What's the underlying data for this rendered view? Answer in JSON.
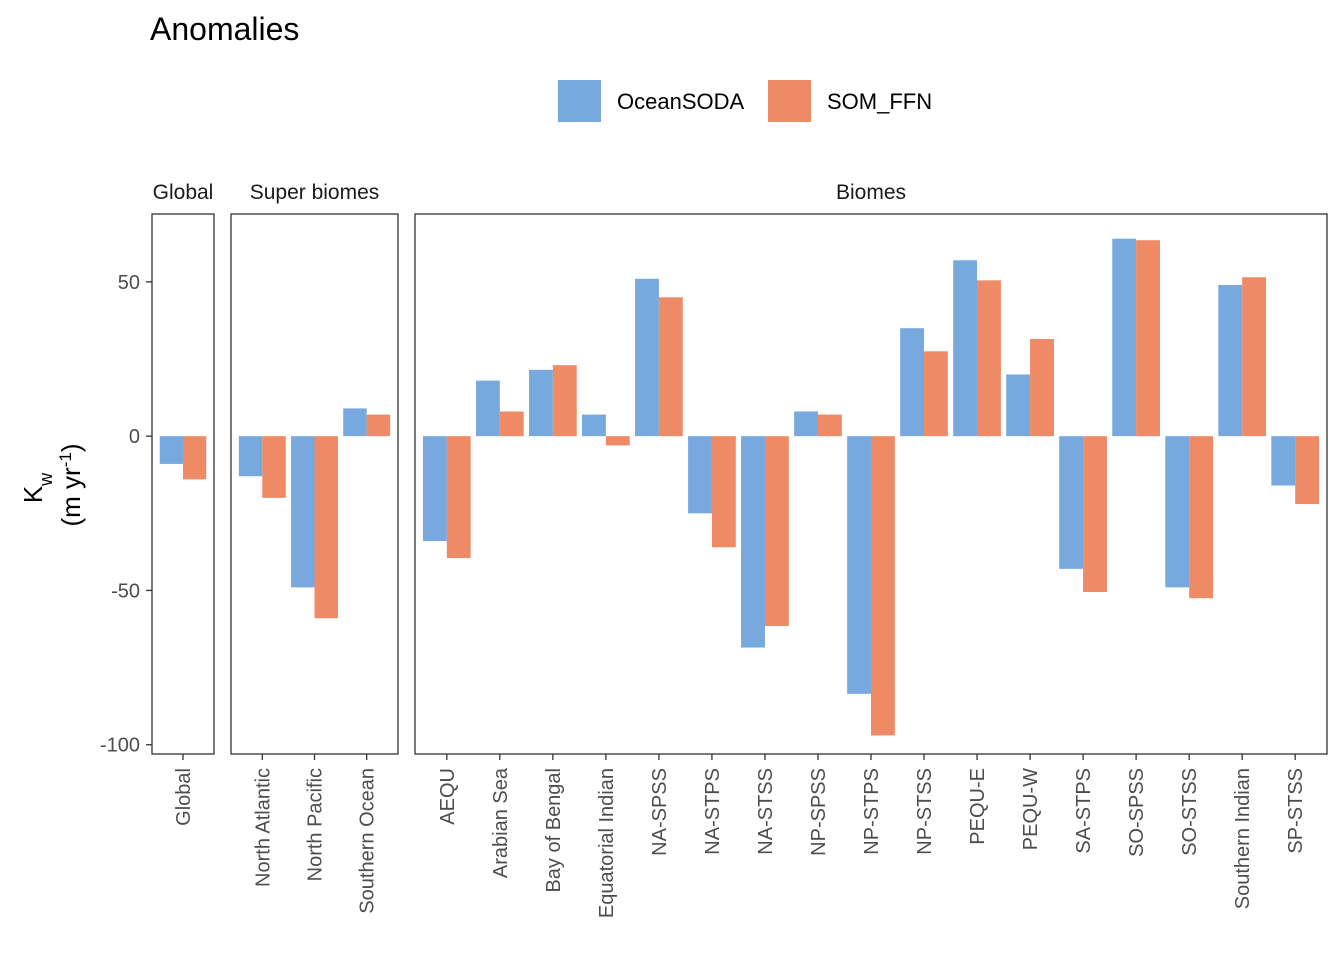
{
  "chart_data": {
    "type": "bar",
    "title": "Anomalies",
    "ylabel": "K_w (m yr-1)",
    "ylabel_parts": {
      "main": "K",
      "sub": "w",
      "units_open": "(m yr",
      "units_sup": "-1",
      "units_close": ")"
    },
    "ylim": [
      -103,
      72
    ],
    "yticks": [
      -100,
      -50,
      0,
      50
    ],
    "grid": false,
    "legend_position": "top",
    "series": [
      {
        "name": "OceanSODA",
        "color": "#77A9DE"
      },
      {
        "name": "SOM_FFN",
        "color": "#EF8A67"
      }
    ],
    "panels": [
      {
        "strip": "Global",
        "categories": [
          "Global"
        ],
        "values": [
          [
            -9
          ],
          [
            -14
          ]
        ]
      },
      {
        "strip": "Super biomes",
        "categories": [
          "North Atlantic",
          "North Pacific",
          "Southern Ocean"
        ],
        "values": [
          [
            -13,
            -49,
            9
          ],
          [
            -20,
            -59,
            7
          ]
        ]
      },
      {
        "strip": "Biomes",
        "categories": [
          "AEQU",
          "Arabian Sea",
          "Bay of Bengal",
          "Equatorial Indian",
          "NA-SPSS",
          "NA-STPS",
          "NA-STSS",
          "NP-SPSS",
          "NP-STPS",
          "NP-STSS",
          "PEQU-E",
          "PEQU-W",
          "SA-STPS",
          "SO-SPSS",
          "SO-STSS",
          "Southern Indian",
          "SP-STSS"
        ],
        "values": [
          [
            -34,
            18,
            21.5,
            7,
            51,
            -25,
            -68.5,
            8,
            -83.5,
            35,
            57,
            20,
            -43,
            64,
            -49,
            49,
            -16
          ],
          [
            -39.5,
            8,
            23,
            -3,
            45,
            -36,
            -61.5,
            7,
            -97,
            27.5,
            50.5,
            31.5,
            -50.5,
            63.5,
            -52.5,
            51.5,
            -22
          ]
        ]
      }
    ]
  }
}
